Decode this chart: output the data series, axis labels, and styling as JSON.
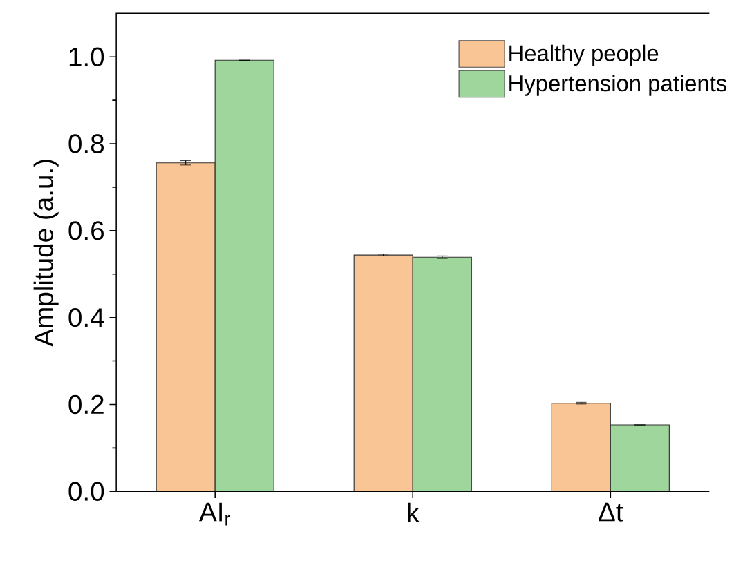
{
  "chart_data": {
    "type": "bar",
    "ylabel": "Amplitude (a.u.)",
    "categories": [
      "AI$_{r}$",
      "k",
      "Δt"
    ],
    "series": [
      {
        "name": "Healthy people",
        "color": "#f9c594",
        "values": [
          0.756,
          0.544,
          0.203
        ],
        "errors": [
          0.005,
          0.002,
          0.002
        ]
      },
      {
        "name": "Hypertension patients",
        "color": "#9ed69c",
        "values": [
          0.992,
          0.539,
          0.153
        ],
        "errors": [
          null,
          0.003,
          null
        ]
      }
    ],
    "ylim": [
      0,
      1.1
    ],
    "yticks": [
      {
        "value": 0,
        "label": "0.0"
      },
      {
        "value": 0.2,
        "label": "0.2"
      },
      {
        "value": 0.4,
        "label": "0.4"
      },
      {
        "value": 0.6,
        "label": "0.6"
      },
      {
        "value": 0.8,
        "label": "0.8"
      },
      {
        "value": 1.0,
        "label": "1.0"
      }
    ],
    "legend": "top right"
  }
}
